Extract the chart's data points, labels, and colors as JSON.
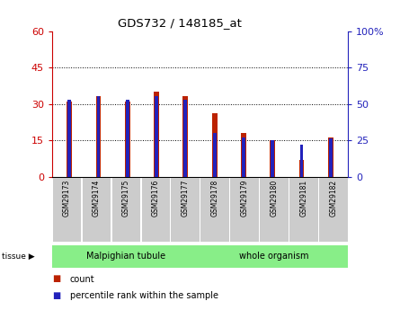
{
  "title": "GDS732 / 148185_at",
  "samples": [
    "GSM29173",
    "GSM29174",
    "GSM29175",
    "GSM29176",
    "GSM29177",
    "GSM29178",
    "GSM29179",
    "GSM29180",
    "GSM29181",
    "GSM29182"
  ],
  "count_values": [
    31,
    33,
    31,
    35,
    33,
    26,
    18,
    15,
    7,
    16
  ],
  "percentile_values": [
    53,
    55,
    53,
    55,
    53,
    30,
    27,
    25,
    22,
    26
  ],
  "tissue_groups": [
    {
      "label": "Malpighian tubule",
      "samples_count": 5
    },
    {
      "label": "whole organism",
      "samples_count": 5
    }
  ],
  "left_ylim": [
    0,
    60
  ],
  "right_ylim": [
    0,
    100
  ],
  "left_yticks": [
    0,
    15,
    30,
    45,
    60
  ],
  "right_yticks": [
    0,
    25,
    50,
    75,
    100
  ],
  "bar_color": "#bb2200",
  "percentile_color": "#2222bb",
  "grid_yticks": [
    15,
    30,
    45
  ],
  "ylabel_left_color": "#cc0000",
  "ylabel_right_color": "#2222bb",
  "bar_width": 0.18,
  "blue_bar_width": 0.12,
  "tick_label_bg": "#cccccc",
  "tissue_color": "#88ee88",
  "bg_color": "#ffffff"
}
